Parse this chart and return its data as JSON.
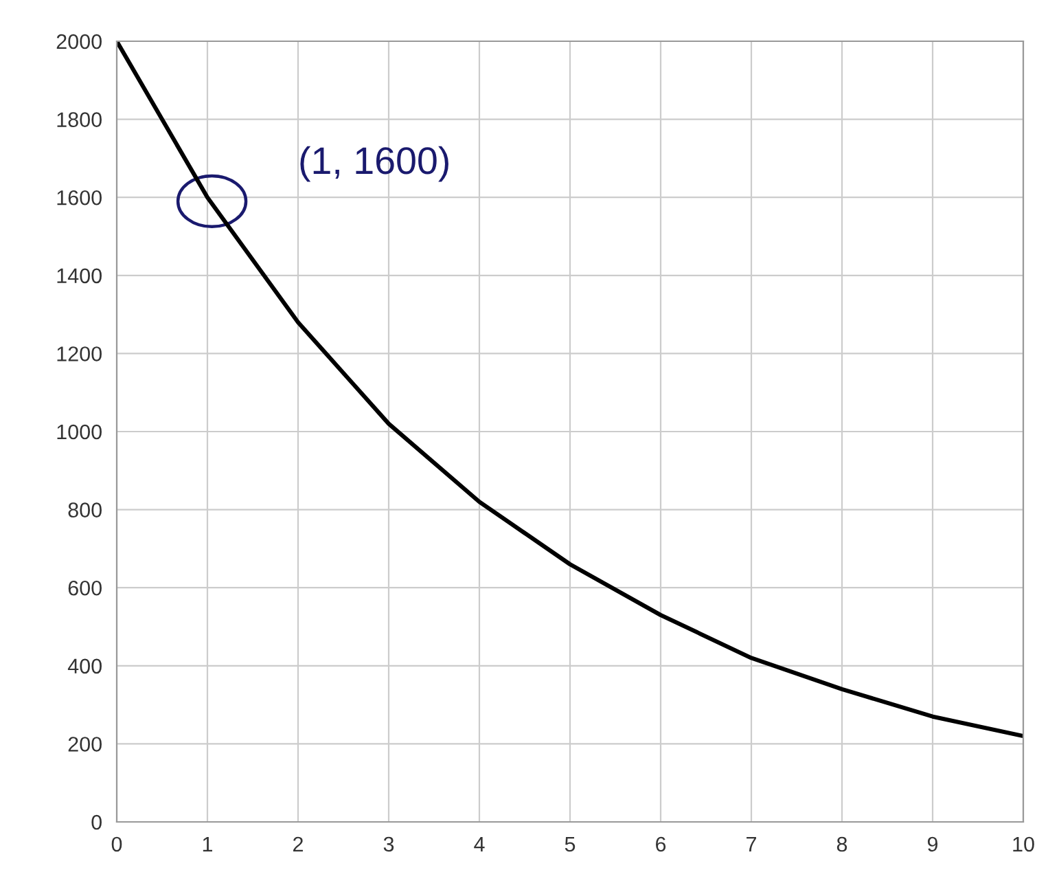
{
  "chart_data": {
    "type": "line",
    "x": [
      0,
      1,
      2,
      3,
      4,
      5,
      6,
      7,
      8,
      9,
      10
    ],
    "series": [
      {
        "color": "#000000",
        "values": [
          2000,
          1600,
          1280,
          1020,
          820,
          660,
          530,
          420,
          340,
          270,
          220
        ]
      }
    ],
    "xlim": [
      0,
      10
    ],
    "xticks": [
      0,
      1,
      2,
      3,
      4,
      5,
      6,
      7,
      8,
      9,
      10
    ],
    "ylim": [
      0,
      2000
    ],
    "yticks": [
      0,
      200,
      400,
      600,
      800,
      1000,
      1200,
      1400,
      1600,
      1800,
      2000
    ],
    "grid": true,
    "marker": "none",
    "line_style": "solid",
    "annotations": [
      {
        "text": "(1, 1600)",
        "x": 1,
        "y": 1600
      }
    ]
  }
}
